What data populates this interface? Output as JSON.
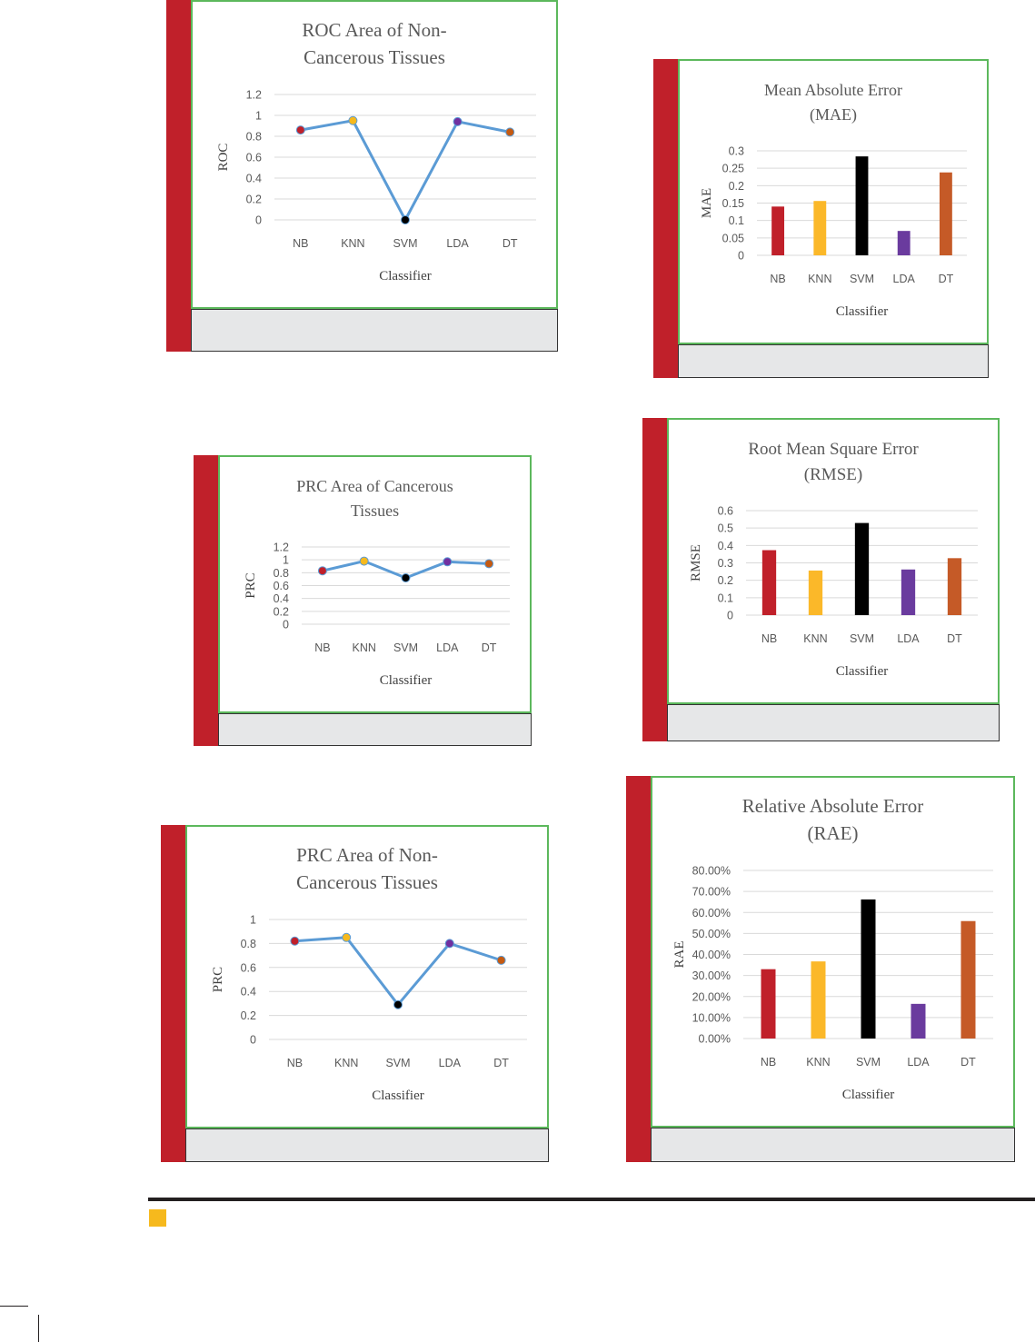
{
  "chart_data": [
    {
      "id": "roc-noncancer",
      "type": "line",
      "title": "ROC Area of  Non-Cancerous Tissues",
      "title_lines": [
        "ROC Area of  Non-",
        "Cancerous Tissues"
      ],
      "xlabel": "Classifier",
      "ylabel": "ROC",
      "categories": [
        "NB",
        "KNN",
        "SVM",
        "LDA",
        "DT"
      ],
      "values": [
        0.86,
        0.95,
        0.0,
        0.94,
        0.84
      ],
      "ylim": [
        0,
        1.2
      ],
      "yticks": [
        "0",
        "0.2",
        "0.4",
        "0.6",
        "0.8",
        "1",
        "1.2"
      ],
      "grid": true,
      "line_color": "#5b9bd5",
      "point_colors": [
        "#c0202a",
        "#f6b91d",
        "#000000",
        "#7030a0",
        "#c55a11"
      ]
    },
    {
      "id": "mae",
      "type": "bar",
      "title": "Mean Absolute Error (MAE)",
      "title_lines": [
        "Mean Absolute Error",
        "(MAE)"
      ],
      "xlabel": "Classifier",
      "ylabel": "MAE",
      "categories": [
        "NB",
        "KNN",
        "SVM",
        "LDA",
        "DT"
      ],
      "values": [
        0.14,
        0.156,
        0.284,
        0.07,
        0.238
      ],
      "ylim": [
        0,
        0.3
      ],
      "yticks": [
        "0",
        "0.05",
        "0.1",
        "0.15",
        "0.2",
        "0.25",
        "0.3"
      ],
      "grid": true,
      "bar_colors": [
        "#c0202a",
        "#fbb829",
        "#000000",
        "#6a3b9e",
        "#c55a27"
      ]
    },
    {
      "id": "prc-cancer",
      "type": "line",
      "title": "PRC Area of Cancerous Tissues",
      "title_lines": [
        "PRC Area of Cancerous",
        "Tissues"
      ],
      "xlabel": "Classifier",
      "ylabel": "PRC",
      "categories": [
        "NB",
        "KNN",
        "SVM",
        "LDA",
        "DT"
      ],
      "values": [
        0.83,
        0.98,
        0.72,
        0.97,
        0.94
      ],
      "ylim": [
        0,
        1.2
      ],
      "yticks": [
        "0",
        "0.2",
        "0.4",
        "0.6",
        "0.8",
        "1",
        "1.2"
      ],
      "grid": true,
      "line_color": "#5b9bd5",
      "point_colors": [
        "#c0202a",
        "#f6b91d",
        "#000000",
        "#7030a0",
        "#c55a11"
      ]
    },
    {
      "id": "rmse",
      "type": "bar",
      "title": "Root Mean Square Error (RMSE)",
      "title_lines": [
        "Root Mean Square Error",
        "(RMSE)"
      ],
      "xlabel": "Classifier",
      "ylabel": "RMSE",
      "categories": [
        "NB",
        "KNN",
        "SVM",
        "LDA",
        "DT"
      ],
      "values": [
        0.373,
        0.256,
        0.529,
        0.262,
        0.327
      ],
      "ylim": [
        0,
        0.6
      ],
      "yticks": [
        "0",
        "0.1",
        "0.2",
        "0.3",
        "0.4",
        "0.5",
        "0.6"
      ],
      "grid": true,
      "bar_colors": [
        "#c0202a",
        "#fbb829",
        "#000000",
        "#6a3b9e",
        "#c55a27"
      ]
    },
    {
      "id": "prc-noncancer",
      "type": "line",
      "title": "PRC Area of Non-Cancerous Tissues",
      "title_lines": [
        "PRC Area of Non-",
        "Cancerous Tissues"
      ],
      "xlabel": "Classifier",
      "ylabel": "PRC",
      "categories": [
        "NB",
        "KNN",
        "SVM",
        "LDA",
        "DT"
      ],
      "values": [
        0.82,
        0.85,
        0.29,
        0.8,
        0.66
      ],
      "ylim": [
        0,
        1
      ],
      "yticks": [
        "0",
        "0.2",
        "0.4",
        "0.6",
        "0.8",
        "1"
      ],
      "grid": true,
      "line_color": "#5b9bd5",
      "point_colors": [
        "#c0202a",
        "#f6b91d",
        "#000000",
        "#7030a0",
        "#c55a11"
      ]
    },
    {
      "id": "rae",
      "type": "bar",
      "title": "Relative  Absolute Error (RAE)",
      "title_lines": [
        "Relative  Absolute Error",
        "(RAE)"
      ],
      "xlabel": "Classifier",
      "ylabel": "RAE",
      "categories": [
        "NB",
        "KNN",
        "SVM",
        "LDA",
        "DT"
      ],
      "values": [
        33.0,
        36.7,
        66.2,
        16.5,
        55.9
      ],
      "ylim": [
        0,
        80
      ],
      "yticks": [
        "0.00%",
        "10.00%",
        "20.00%",
        "30.00%",
        "40.00%",
        "50.00%",
        "60.00%",
        "70.00%",
        "80.00%"
      ],
      "grid": true,
      "bar_colors": [
        "#c0202a",
        "#fbb829",
        "#000000",
        "#6a3b9e",
        "#c55a27"
      ]
    }
  ],
  "colors": {
    "panel_bar": "#c0202a",
    "chart_border": "#5cb85c",
    "caption_bg": "#e6e7e8",
    "footer_square": "#f6b91d"
  }
}
